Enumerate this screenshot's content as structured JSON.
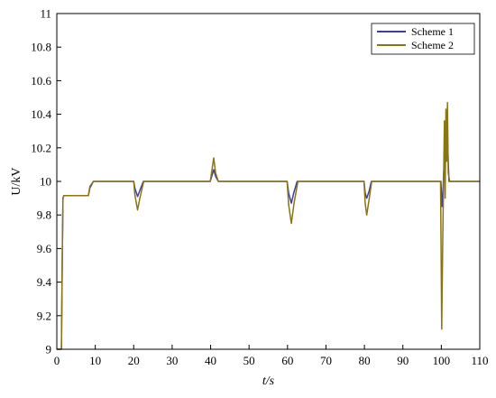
{
  "chart_data": {
    "type": "line",
    "title": "",
    "xlabel": "t/s",
    "ylabel": "U/kV",
    "xlim": [
      0,
      110
    ],
    "ylim": [
      9,
      11
    ],
    "xticks": [
      0,
      10,
      20,
      30,
      40,
      50,
      60,
      70,
      80,
      90,
      100,
      110
    ],
    "yticks": [
      9,
      9.2,
      9.4,
      9.6,
      9.8,
      10,
      10.2,
      10.4,
      10.6,
      10.8,
      11
    ],
    "grid": false,
    "legend_position": "top-right",
    "series": [
      {
        "name": "Scheme 1",
        "color": "#3b3fa0",
        "x": [
          0,
          1.2,
          1.4,
          1.6,
          1.8,
          2,
          8.2,
          8.6,
          9.5,
          20,
          20.3,
          21,
          21.5,
          22.5,
          39.9,
          40.3,
          40.8,
          41.3,
          42,
          59.9,
          60.3,
          61,
          61.6,
          62.5,
          79.9,
          80.2,
          80.6,
          81.2,
          81.8,
          99.9,
          100.2,
          100.4,
          100.6,
          100.8,
          101,
          101.2,
          101.4,
          101.6,
          101.8,
          102,
          110
        ],
        "y": [
          9,
          9,
          9.5,
          9.9,
          9.915,
          9.915,
          9.915,
          9.96,
          10,
          10,
          9.96,
          9.91,
          9.94,
          10,
          10,
          10.03,
          10.07,
          10.03,
          10,
          10,
          9.93,
          9.87,
          9.93,
          10,
          10,
          9.93,
          9.9,
          9.94,
          10,
          10,
          9.85,
          9.92,
          10.05,
          10.1,
          10.22,
          10.3,
          10.35,
          10.28,
          10.12,
          10,
          10
        ]
      },
      {
        "name": "Scheme 2",
        "color": "#8b7414",
        "x": [
          0,
          1.2,
          1.4,
          1.6,
          1.8,
          2,
          8.2,
          8.6,
          9.5,
          20,
          20.3,
          21,
          21.6,
          22.6,
          39.9,
          40.3,
          40.8,
          41.3,
          42,
          59.9,
          60.3,
          61,
          61.7,
          62.7,
          79.9,
          80.2,
          80.6,
          81.2,
          81.9,
          99.8,
          100.1,
          100.4,
          100.6,
          100.8,
          101,
          101.2,
          101.4,
          101.6,
          101.8,
          102.2,
          110
        ],
        "y": [
          9,
          9,
          9.5,
          9.9,
          9.915,
          9.915,
          9.915,
          9.97,
          10,
          10,
          9.92,
          9.83,
          9.9,
          10,
          10,
          10.06,
          10.14,
          10.05,
          10,
          10,
          9.86,
          9.75,
          9.87,
          10,
          10,
          9.87,
          9.8,
          9.89,
          10,
          10,
          9.12,
          9.7,
          10.02,
          10.36,
          9.9,
          10.43,
          10.12,
          10.47,
          10.05,
          10,
          10
        ]
      }
    ]
  }
}
